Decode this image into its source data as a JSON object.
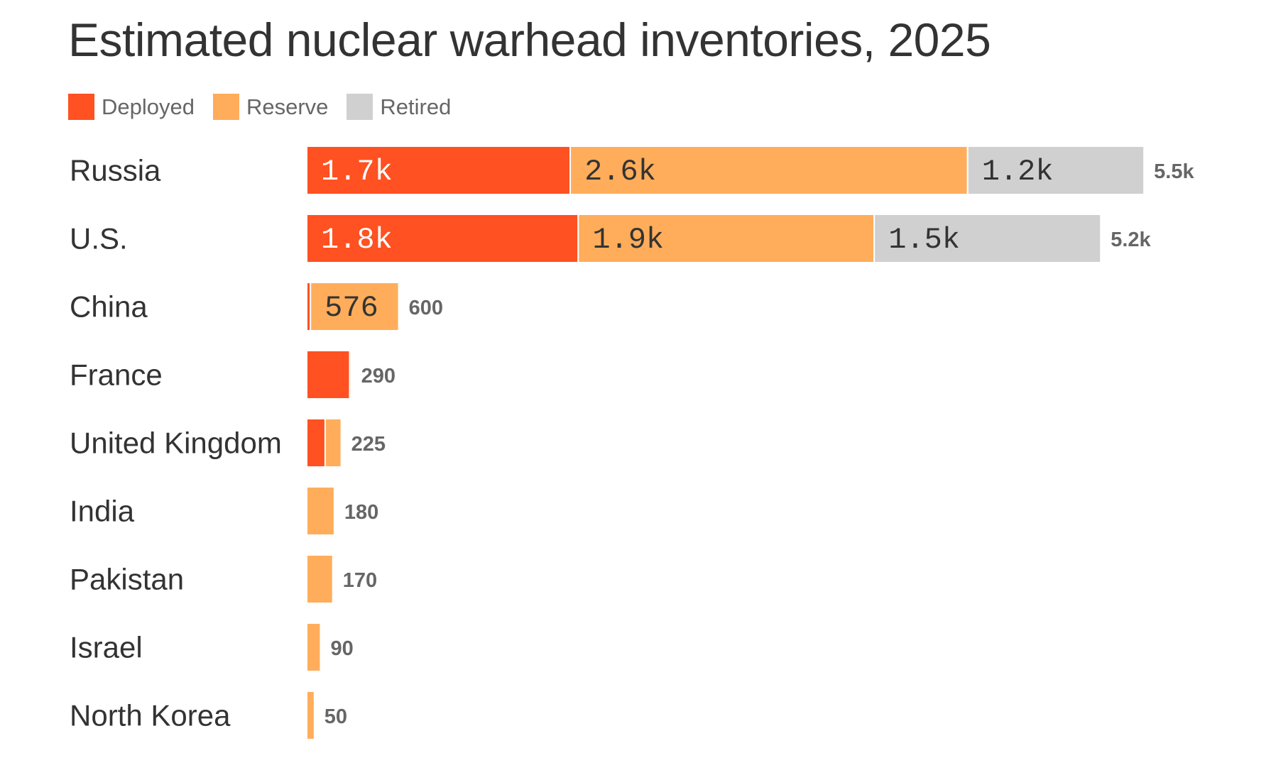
{
  "colors": {
    "deployed": "#ff5121",
    "reserve": "#ffad5b",
    "retired": "#d0d0d0",
    "text_dark": "#333333",
    "text_muted": "#666666"
  },
  "chart_data": {
    "type": "bar",
    "orientation": "horizontal",
    "stacked": true,
    "title": "Estimated nuclear warhead inventories, 2025",
    "xlabel": "",
    "ylabel": "",
    "xlim": [
      0,
      5500
    ],
    "legend_position": "top-left",
    "categories": [
      "Russia",
      "U.S.",
      "China",
      "France",
      "United Kingdom",
      "India",
      "Pakistan",
      "Israel",
      "North Korea"
    ],
    "series": [
      {
        "name": "Deployed",
        "key": "deployed",
        "values": [
          1718,
          1770,
          24,
          280,
          120,
          0,
          0,
          0,
          0
        ],
        "labels": [
          "1.7k",
          "1.8k",
          "",
          "",
          "",
          "",
          "",
          "",
          ""
        ]
      },
      {
        "name": "Reserve",
        "key": "reserve",
        "values": [
          2591,
          1930,
          576,
          10,
          105,
          180,
          170,
          90,
          50
        ],
        "labels": [
          "2.6k",
          "1.9k",
          "576",
          "",
          "",
          "",
          "",
          "",
          ""
        ]
      },
      {
        "name": "Retired",
        "key": "retired",
        "values": [
          1150,
          1477,
          0,
          0,
          0,
          0,
          0,
          0,
          0
        ],
        "labels": [
          "1.2k",
          "1.5k",
          "",
          "",
          "",
          "",
          "",
          "",
          ""
        ]
      }
    ],
    "totals": [
      5459,
      5177,
      600,
      290,
      225,
      180,
      170,
      90,
      50
    ],
    "total_labels": [
      "5.5k",
      "5.2k",
      "600",
      "290",
      "225",
      "180",
      "170",
      "90",
      "50"
    ]
  }
}
